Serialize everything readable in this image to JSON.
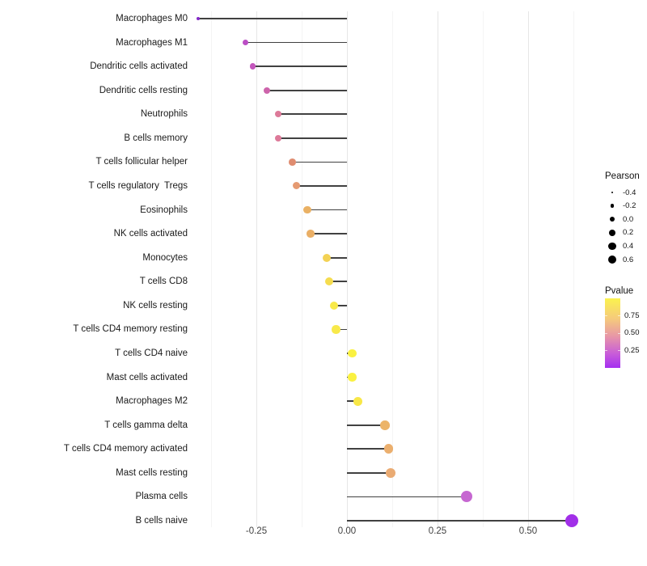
{
  "chart_data": {
    "type": "scatter",
    "subtype": "lollipop",
    "title": "",
    "xlabel": "",
    "ylabel": "",
    "x_axis": {
      "ticks": [
        -0.25,
        0.0,
        0.25,
        0.5
      ],
      "tick_labels": [
        "-0.25",
        "0.00",
        "0.25",
        "0.50"
      ],
      "minor_ticks": [
        -0.375,
        -0.125,
        0.125,
        0.375,
        0.625
      ],
      "range": [
        -0.43,
        0.64
      ],
      "grid": true
    },
    "points": [
      {
        "label": "Macrophages M0",
        "pearson": -0.41,
        "pvalue_approx": 0.05,
        "color": "#8429C8",
        "r": 2.0
      },
      {
        "label": "Macrophages M1",
        "pearson": -0.28,
        "pvalue_approx": 0.22,
        "color": "#BB4EC5",
        "r": 3.5
      },
      {
        "label": "Dendritic cells activated",
        "pearson": -0.26,
        "pvalue_approx": 0.25,
        "color": "#C356BC",
        "r": 3.7
      },
      {
        "label": "Dendritic cells resting",
        "pearson": -0.22,
        "pvalue_approx": 0.32,
        "color": "#CD64AB",
        "r": 4.0
      },
      {
        "label": "Neutrophils",
        "pearson": -0.19,
        "pvalue_approx": 0.4,
        "color": "#DD7A99",
        "r": 4.2
      },
      {
        "label": "B cells memory",
        "pearson": -0.19,
        "pvalue_approx": 0.4,
        "color": "#DD7A99",
        "r": 4.2
      },
      {
        "label": "T cells follicular helper",
        "pearson": -0.15,
        "pvalue_approx": 0.5,
        "color": "#DF8C70",
        "r": 4.4
      },
      {
        "label": "T cells regulatory  Tregs",
        "pearson": -0.14,
        "pvalue_approx": 0.53,
        "color": "#E59A72",
        "r": 4.5
      },
      {
        "label": "Eosinophils",
        "pearson": -0.11,
        "pvalue_approx": 0.6,
        "color": "#EAB164",
        "r": 4.8
      },
      {
        "label": "NK cells activated",
        "pearson": -0.1,
        "pvalue_approx": 0.6,
        "color": "#EAAF66",
        "r": 4.8
      },
      {
        "label": "Monocytes",
        "pearson": -0.055,
        "pvalue_approx": 0.72,
        "color": "#F3D254",
        "r": 5.0
      },
      {
        "label": "T cells CD8",
        "pearson": -0.05,
        "pvalue_approx": 0.75,
        "color": "#F5DC4F",
        "r": 5.0
      },
      {
        "label": "NK cells resting",
        "pearson": -0.035,
        "pvalue_approx": 0.8,
        "color": "#F8E94A",
        "r": 5.1
      },
      {
        "label": "T cells CD4 memory resting",
        "pearson": -0.03,
        "pvalue_approx": 0.8,
        "color": "#F8E94A",
        "r": 5.1
      },
      {
        "label": "T cells CD4 naive",
        "pearson": 0.015,
        "pvalue_approx": 0.9,
        "color": "#FAF141",
        "r": 5.3
      },
      {
        "label": "Mast cells activated",
        "pearson": 0.015,
        "pvalue_approx": 0.9,
        "color": "#FAF141",
        "r": 5.3
      },
      {
        "label": "Macrophages M2",
        "pearson": 0.03,
        "pvalue_approx": 0.85,
        "color": "#F8E747",
        "r": 5.4
      },
      {
        "label": "T cells gamma delta",
        "pearson": 0.105,
        "pvalue_approx": 0.61,
        "color": "#ECB468",
        "r": 5.8
      },
      {
        "label": "T cells CD4 memory activated",
        "pearson": 0.115,
        "pvalue_approx": 0.58,
        "color": "#EBAF6E",
        "r": 5.9
      },
      {
        "label": "Mast cells resting",
        "pearson": 0.12,
        "pvalue_approx": 0.56,
        "color": "#EAAB73",
        "r": 6.0
      },
      {
        "label": "Plasma cells",
        "pearson": 0.33,
        "pvalue_approx": 0.28,
        "color": "#C667D1",
        "r": 7.0
      },
      {
        "label": "B cells naive",
        "pearson": 0.62,
        "pvalue_approx": 0.03,
        "color": "#A12FE8",
        "r": 8.2
      }
    ],
    "size_legend": {
      "title": "Pearson",
      "entries": [
        {
          "label": "-0.4",
          "r": 1.4
        },
        {
          "label": "-0.2",
          "r": 2.4
        },
        {
          "label": "0.0",
          "r": 3.3
        },
        {
          "label": "0.2",
          "r": 4.0
        },
        {
          "label": "0.4",
          "r": 4.7
        },
        {
          "label": "0.6",
          "r": 5.4
        }
      ],
      "dot_color": "#000000"
    },
    "color_legend": {
      "title": "Pvalue",
      "tick_labels": [
        "0.75",
        "0.50",
        "0.25"
      ],
      "gradient_top_to_bottom": [
        "#FBF24E",
        "#F5C97D",
        "#E795A8",
        "#C75CD9",
        "#A52FF0"
      ],
      "value_top": 1.0,
      "value_bottom": 0.0
    },
    "stick_color": "#414141",
    "baseline_x": 0.0,
    "legend_position": "right"
  }
}
